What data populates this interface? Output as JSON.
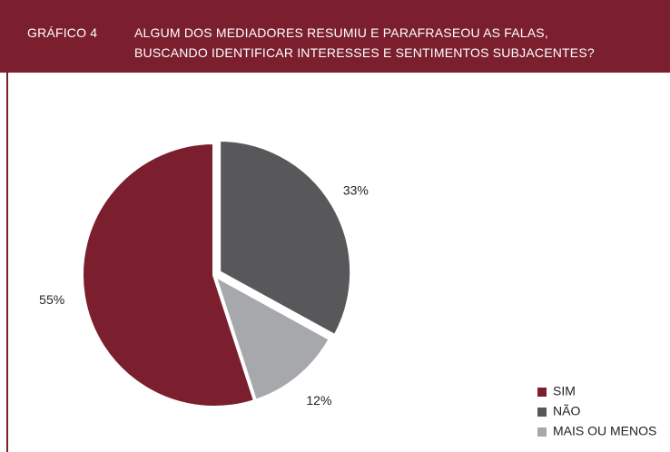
{
  "chart_data": {
    "type": "pie",
    "label": "GRÁFICO 4",
    "title": [
      "ALGUM DOS MEDIADORES RESUMIU E PARAFRASEOU AS FALAS,",
      "BUSCANDO IDENTIFICAR INTERESSES E SENTIMENTOS SUBJACENTES?"
    ],
    "categories": [
      "NÃO",
      "MAIS OU MENOS",
      "SIM"
    ],
    "values": [
      33,
      12,
      55
    ],
    "value_labels": [
      "33%",
      "12%",
      "55%"
    ],
    "colors": [
      "#58585a",
      "#a7a8ac",
      "#7b1f2e"
    ],
    "legend": "bottom-right",
    "legend_order": [
      2,
      0,
      1
    ]
  }
}
